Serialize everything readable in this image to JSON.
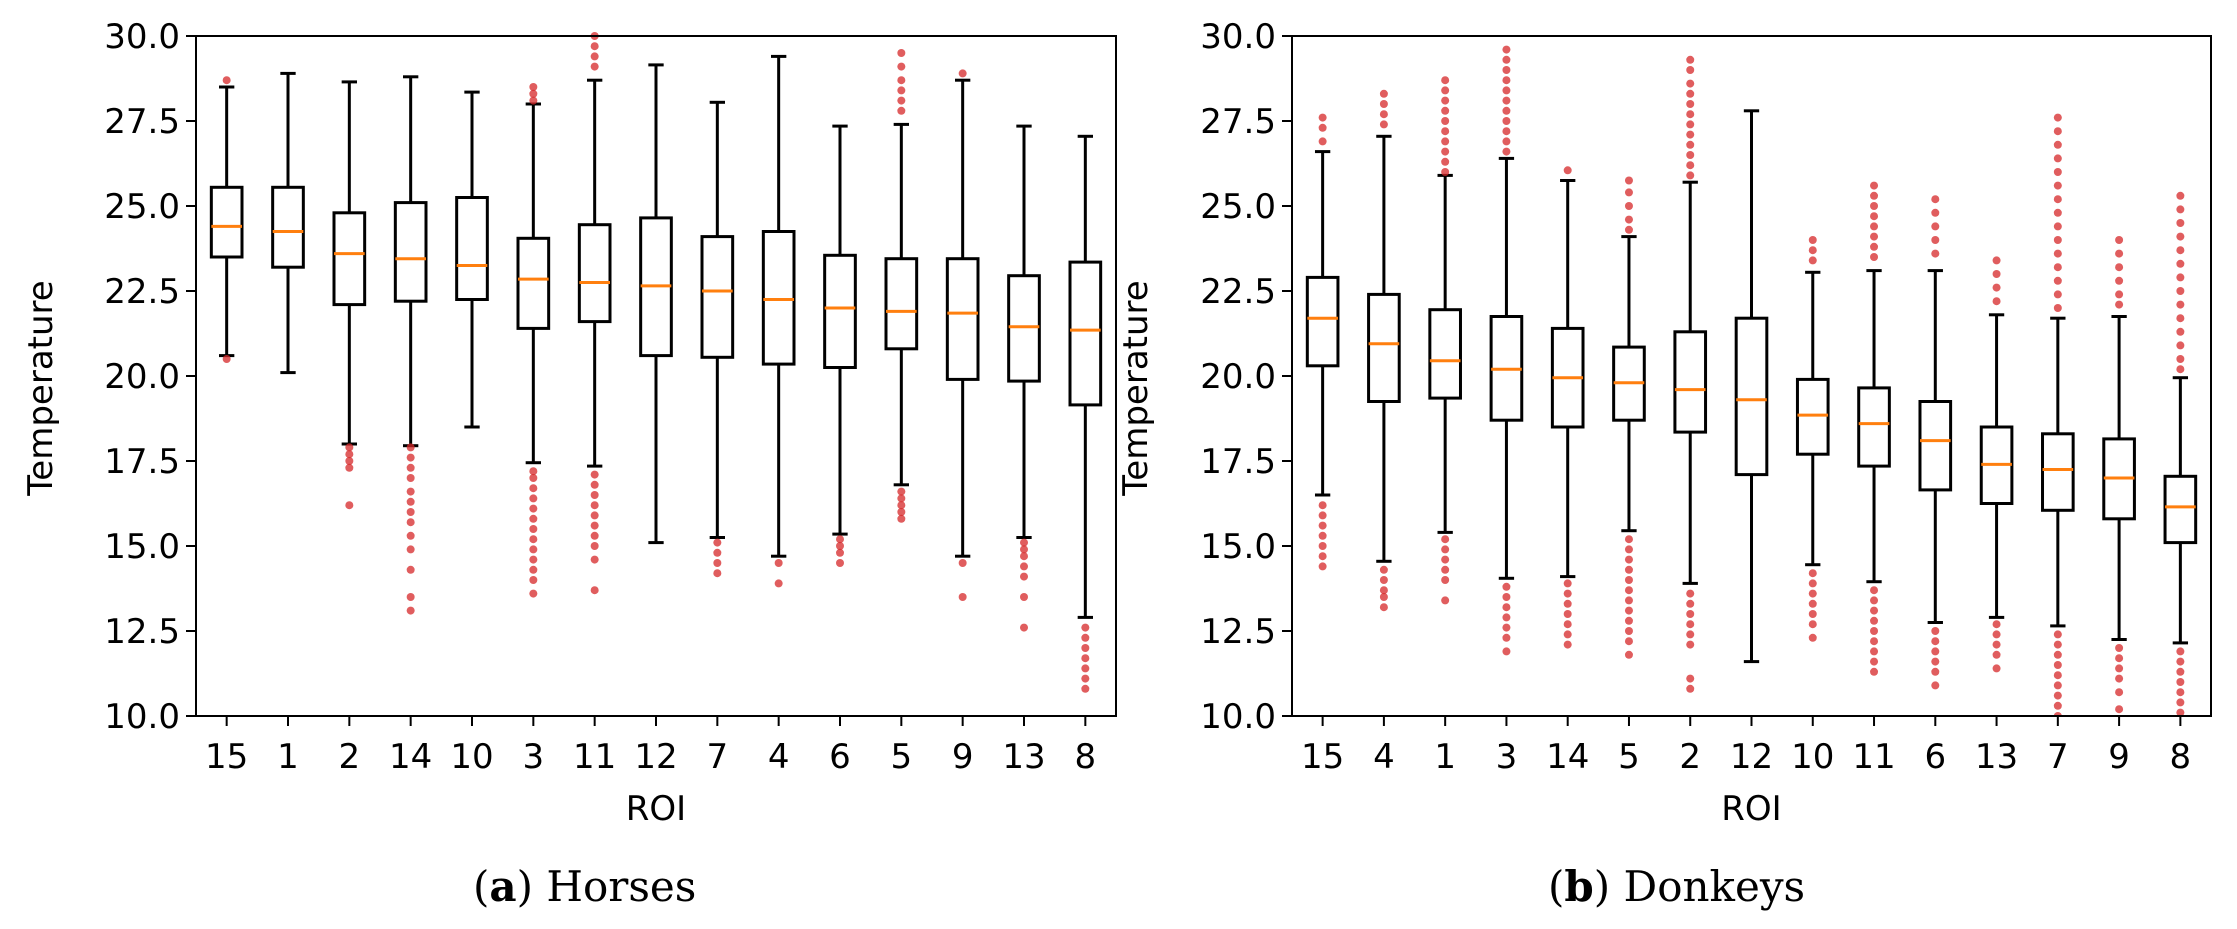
{
  "colors": {
    "box": "#000000",
    "median": "#ff7f0e",
    "outlier": "#d62728"
  },
  "captions": [
    {
      "letter": "a",
      "text": "Horses"
    },
    {
      "letter": "b",
      "text": "Donkeys"
    }
  ],
  "chart_data": [
    {
      "type": "boxplot",
      "title": "",
      "xlabel": "ROI",
      "ylabel": "Temperature",
      "ylim": [
        10.0,
        30.0
      ],
      "yticks": [
        "10.0",
        "12.5",
        "15.0",
        "17.5",
        "20.0",
        "22.5",
        "25.0",
        "27.5",
        "30.0"
      ],
      "categories": [
        "15",
        "1",
        "2",
        "14",
        "10",
        "3",
        "11",
        "12",
        "7",
        "4",
        "6",
        "5",
        "9",
        "13",
        "8"
      ],
      "boxes": [
        {
          "q1": 23.5,
          "median": 24.4,
          "q3": 25.55,
          "whislo": 20.6,
          "whishi": 28.5,
          "fliers": [
            28.7,
            20.5
          ]
        },
        {
          "q1": 23.2,
          "median": 24.25,
          "q3": 25.55,
          "whislo": 20.1,
          "whishi": 28.9,
          "fliers": []
        },
        {
          "q1": 22.1,
          "median": 23.6,
          "q3": 24.8,
          "whislo": 18.0,
          "whishi": 28.65,
          "fliers": [
            17.9,
            17.7,
            17.5,
            17.3,
            16.2
          ]
        },
        {
          "q1": 22.2,
          "median": 23.45,
          "q3": 25.1,
          "whislo": 17.95,
          "whishi": 28.8,
          "fliers": [
            17.9,
            17.6,
            17.3,
            17.0,
            16.6,
            16.3,
            16.0,
            15.7,
            15.3,
            14.9,
            14.3,
            13.5,
            13.1
          ]
        },
        {
          "q1": 22.25,
          "median": 23.25,
          "q3": 25.25,
          "whislo": 18.5,
          "whishi": 28.35,
          "fliers": []
        },
        {
          "q1": 21.4,
          "median": 22.85,
          "q3": 24.05,
          "whislo": 17.45,
          "whishi": 28.0,
          "fliers": [
            28.5,
            28.3,
            28.1,
            17.2,
            17.0,
            16.7,
            16.4,
            16.1,
            15.8,
            15.5,
            15.2,
            14.9,
            14.6,
            14.3,
            14.0,
            13.6
          ]
        },
        {
          "q1": 21.6,
          "median": 22.75,
          "q3": 24.45,
          "whislo": 17.35,
          "whishi": 28.7,
          "fliers": [
            30.0,
            29.7,
            29.4,
            29.1,
            17.1,
            16.8,
            16.5,
            16.2,
            15.9,
            15.6,
            15.3,
            15.0,
            14.6,
            13.7
          ]
        },
        {
          "q1": 20.6,
          "median": 22.65,
          "q3": 24.65,
          "whislo": 15.1,
          "whishi": 29.15,
          "fliers": []
        },
        {
          "q1": 20.55,
          "median": 22.5,
          "q3": 24.1,
          "whislo": 15.25,
          "whishi": 28.05,
          "fliers": [
            15.1,
            14.8,
            14.5,
            14.2
          ]
        },
        {
          "q1": 20.35,
          "median": 22.25,
          "q3": 24.25,
          "whislo": 14.7,
          "whishi": 29.4,
          "fliers": [
            14.5,
            13.9
          ]
        },
        {
          "q1": 20.25,
          "median": 22.0,
          "q3": 23.55,
          "whislo": 15.35,
          "whishi": 27.35,
          "fliers": [
            15.2,
            15.0,
            14.8,
            14.5
          ]
        },
        {
          "q1": 20.8,
          "median": 21.9,
          "q3": 23.45,
          "whislo": 16.8,
          "whishi": 27.4,
          "fliers": [
            29.5,
            29.1,
            28.7,
            28.4,
            28.1,
            27.8,
            16.6,
            16.4,
            16.2,
            16.0,
            15.8
          ]
        },
        {
          "q1": 19.9,
          "median": 21.85,
          "q3": 23.45,
          "whislo": 14.7,
          "whishi": 28.7,
          "fliers": [
            28.9,
            14.5,
            13.5
          ]
        },
        {
          "q1": 19.85,
          "median": 21.45,
          "q3": 22.95,
          "whislo": 15.25,
          "whishi": 27.35,
          "fliers": [
            15.1,
            14.9,
            14.7,
            14.4,
            14.1,
            13.5,
            12.6
          ]
        },
        {
          "q1": 19.15,
          "median": 21.35,
          "q3": 23.35,
          "whislo": 12.9,
          "whishi": 27.05,
          "fliers": [
            12.6,
            12.3,
            12.0,
            11.7,
            11.4,
            11.1,
            10.8
          ]
        }
      ]
    },
    {
      "type": "boxplot",
      "title": "",
      "xlabel": "ROI",
      "ylabel": "Temperature",
      "ylim": [
        10.0,
        30.0
      ],
      "yticks": [
        "10.0",
        "12.5",
        "15.0",
        "17.5",
        "20.0",
        "22.5",
        "25.0",
        "27.5",
        "30.0"
      ],
      "categories": [
        "15",
        "4",
        "1",
        "3",
        "14",
        "5",
        "2",
        "12",
        "10",
        "11",
        "6",
        "13",
        "7",
        "9",
        "8"
      ],
      "boxes": [
        {
          "q1": 20.3,
          "median": 21.7,
          "q3": 22.9,
          "whislo": 16.5,
          "whishi": 26.6,
          "fliers": [
            27.6,
            27.3,
            26.9,
            16.2,
            15.9,
            15.6,
            15.3,
            15.0,
            14.7,
            14.4
          ]
        },
        {
          "q1": 19.25,
          "median": 20.95,
          "q3": 22.4,
          "whislo": 14.55,
          "whishi": 27.05,
          "fliers": [
            28.3,
            28.0,
            27.7,
            27.4,
            14.3,
            14.0,
            13.7,
            13.5,
            13.2
          ]
        },
        {
          "q1": 19.35,
          "median": 20.45,
          "q3": 21.95,
          "whislo": 15.4,
          "whishi": 25.9,
          "fliers": [
            28.7,
            28.4,
            28.1,
            27.8,
            27.5,
            27.2,
            26.9,
            26.6,
            26.3,
            26.0,
            15.2,
            14.9,
            14.6,
            14.3,
            14.0,
            13.4
          ]
        },
        {
          "q1": 18.7,
          "median": 20.2,
          "q3": 21.75,
          "whislo": 14.05,
          "whishi": 26.4,
          "fliers": [
            29.6,
            29.3,
            29.0,
            28.7,
            28.4,
            28.1,
            27.8,
            27.5,
            27.2,
            26.9,
            26.6,
            13.8,
            13.5,
            13.2,
            12.9,
            12.6,
            12.3,
            11.9
          ]
        },
        {
          "q1": 18.5,
          "median": 19.95,
          "q3": 21.4,
          "whislo": 14.1,
          "whishi": 25.75,
          "fliers": [
            26.05,
            13.9,
            13.6,
            13.3,
            13.0,
            12.7,
            12.4,
            12.1
          ]
        },
        {
          "q1": 18.7,
          "median": 19.8,
          "q3": 20.85,
          "whislo": 15.45,
          "whishi": 24.1,
          "fliers": [
            25.75,
            25.4,
            25.0,
            24.6,
            24.3,
            15.2,
            14.9,
            14.6,
            14.3,
            14.0,
            13.7,
            13.4,
            13.1,
            12.8,
            12.5,
            12.2,
            11.8
          ]
        },
        {
          "q1": 18.35,
          "median": 19.6,
          "q3": 21.3,
          "whislo": 13.9,
          "whishi": 25.7,
          "fliers": [
            29.3,
            29.0,
            28.6,
            28.3,
            28.0,
            27.7,
            27.4,
            27.1,
            26.8,
            26.5,
            26.2,
            25.9,
            13.6,
            13.3,
            13.0,
            12.7,
            12.4,
            12.1,
            11.1,
            10.8
          ]
        },
        {
          "q1": 17.1,
          "median": 19.3,
          "q3": 21.7,
          "whislo": 11.6,
          "whishi": 27.8,
          "fliers": []
        },
        {
          "q1": 17.7,
          "median": 18.85,
          "q3": 19.9,
          "whislo": 14.45,
          "whishi": 23.05,
          "fliers": [
            24.0,
            23.7,
            23.4,
            14.2,
            13.9,
            13.6,
            13.3,
            13.0,
            12.7,
            12.3
          ]
        },
        {
          "q1": 17.35,
          "median": 18.6,
          "q3": 19.65,
          "whislo": 13.95,
          "whishi": 23.1,
          "fliers": [
            25.6,
            25.3,
            25.0,
            24.7,
            24.4,
            24.1,
            23.8,
            23.5,
            13.7,
            13.4,
            13.1,
            12.8,
            12.5,
            12.2,
            11.9,
            11.6,
            11.3
          ]
        },
        {
          "q1": 16.65,
          "median": 18.1,
          "q3": 19.25,
          "whislo": 12.75,
          "whishi": 23.1,
          "fliers": [
            25.2,
            24.8,
            24.4,
            24.0,
            23.6,
            12.5,
            12.2,
            11.9,
            11.6,
            11.3,
            10.9
          ]
        },
        {
          "q1": 16.25,
          "median": 17.4,
          "q3": 18.5,
          "whislo": 12.9,
          "whishi": 21.8,
          "fliers": [
            23.4,
            23.0,
            22.6,
            22.2,
            12.7,
            12.4,
            12.1,
            11.8,
            11.4
          ]
        },
        {
          "q1": 16.05,
          "median": 17.25,
          "q3": 18.3,
          "whislo": 12.65,
          "whishi": 21.7,
          "fliers": [
            27.6,
            27.2,
            26.8,
            26.4,
            26.0,
            25.6,
            25.2,
            24.8,
            24.4,
            24.0,
            23.6,
            23.2,
            22.8,
            22.4,
            22.0,
            12.4,
            12.1,
            11.8,
            11.5,
            11.2,
            10.9,
            10.6,
            10.3,
            10.0
          ]
        },
        {
          "q1": 15.8,
          "median": 17.0,
          "q3": 18.15,
          "whislo": 12.25,
          "whishi": 21.75,
          "fliers": [
            24.0,
            23.6,
            23.2,
            22.8,
            22.4,
            22.1,
            12.0,
            11.7,
            11.4,
            11.1,
            10.7,
            10.2
          ]
        },
        {
          "q1": 15.1,
          "median": 16.15,
          "q3": 17.05,
          "whislo": 12.15,
          "whishi": 19.95,
          "fliers": [
            25.3,
            24.9,
            24.5,
            24.1,
            23.7,
            23.3,
            22.9,
            22.5,
            22.1,
            21.7,
            21.3,
            20.9,
            20.5,
            20.2,
            11.9,
            11.6,
            11.3,
            11.0,
            10.7,
            10.4,
            10.1
          ]
        }
      ]
    }
  ]
}
